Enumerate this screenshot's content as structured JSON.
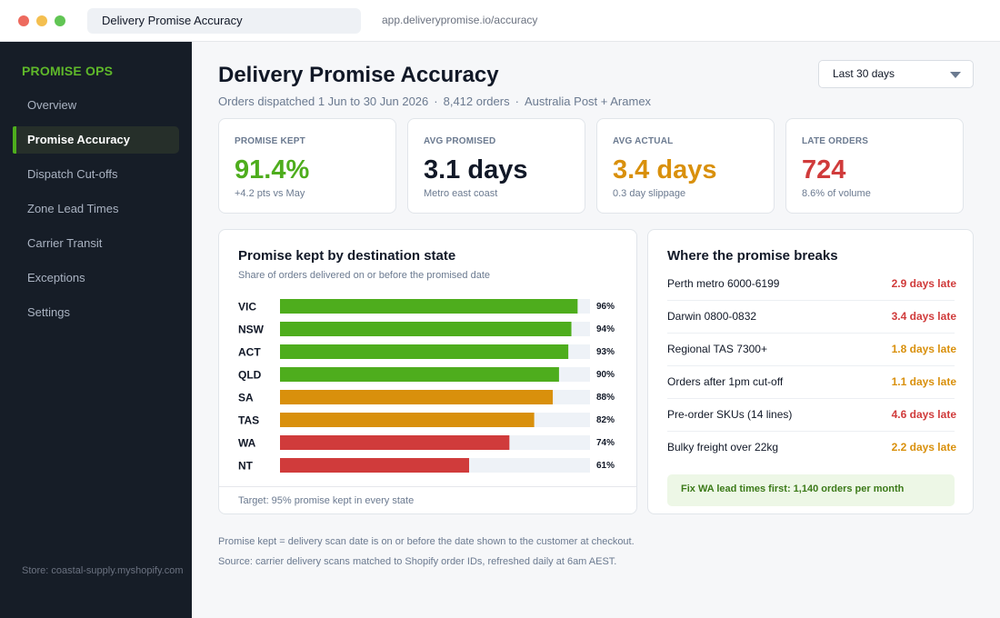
{
  "browser": {
    "tab_title": "Delivery Promise Accuracy",
    "url": "app.deliverypromise.io/accuracy"
  },
  "sidebar": {
    "brand": "PROMISE OPS",
    "items": [
      {
        "label": "Overview",
        "active": false
      },
      {
        "label": "Promise Accuracy",
        "active": true
      },
      {
        "label": "Dispatch Cut-offs",
        "active": false
      },
      {
        "label": "Zone Lead Times",
        "active": false
      },
      {
        "label": "Carrier Transit",
        "active": false
      },
      {
        "label": "Exceptions",
        "active": false
      },
      {
        "label": "Settings",
        "active": false
      }
    ],
    "store": "Store: coastal-supply.myshopify.com"
  },
  "header": {
    "title": "Delivery Promise Accuracy",
    "subtitle_range": "Orders dispatched 1 Jun to 30 Jun 2026",
    "subtitle_orders": "8,412 orders",
    "subtitle_carriers": "Australia Post + Aramex",
    "separator": "·",
    "range_select": "Last 30 days"
  },
  "kpis": [
    {
      "label": "PROMISE KEPT",
      "value": "91.4%",
      "note": "+4.2 pts vs May",
      "color": "#4ead1d"
    },
    {
      "label": "AVG PROMISED",
      "value": "3.1 days",
      "note": "Metro east coast",
      "color": "#111827"
    },
    {
      "label": "AVG ACTUAL",
      "value": "3.4 days",
      "note": "0.3 day slippage",
      "color": "#d9900c"
    },
    {
      "label": "LATE ORDERS",
      "value": "724",
      "note": "8.6% of volume",
      "color": "#d03b3b"
    }
  ],
  "chart_panel": {
    "title": "Promise kept by destination state",
    "subtitle": "Share of orders delivered on or before the promised date",
    "footer": "Target: 95% promise kept in every state"
  },
  "chart_data": {
    "type": "bar",
    "orientation": "horizontal",
    "categories": [
      "VIC",
      "NSW",
      "ACT",
      "QLD",
      "SA",
      "TAS",
      "WA",
      "NT"
    ],
    "values": [
      96,
      94,
      93,
      90,
      88,
      82,
      74,
      61
    ],
    "value_labels": [
      "96%",
      "94%",
      "93%",
      "90%",
      "88%",
      "82%",
      "74%",
      "61%"
    ],
    "bar_colors": [
      "#4ead1d",
      "#4ead1d",
      "#4ead1d",
      "#4ead1d",
      "#d9900c",
      "#d9900c",
      "#d03b3b",
      "#d03b3b"
    ],
    "track_color": "#eef2f7",
    "xlim": [
      0,
      100
    ],
    "grid": false
  },
  "breaks_panel": {
    "title": "Where the promise breaks",
    "rows": [
      {
        "label": "Perth metro 6000-6199",
        "value": "2.9 days late",
        "color": "#d03b3b"
      },
      {
        "label": "Darwin 0800-0832",
        "value": "3.4 days late",
        "color": "#d03b3b"
      },
      {
        "label": "Regional TAS 7300+",
        "value": "1.8 days late",
        "color": "#d9900c"
      },
      {
        "label": "Orders after 1pm cut-off",
        "value": "1.1 days late",
        "color": "#d9900c"
      },
      {
        "label": "Pre-order SKUs (14 lines)",
        "value": "4.6 days late",
        "color": "#d03b3b"
      },
      {
        "label": "Bulky freight over 22kg",
        "value": "2.2 days late",
        "color": "#d9900c"
      }
    ],
    "callout": "Fix WA lead times first: 1,140 orders per month"
  },
  "footnotes": {
    "definition": "Promise kept = delivery scan date is on or before the date shown to the customer at checkout.",
    "source": "Source: carrier delivery scans matched to Shopify order IDs, refreshed daily at 6am AEST."
  }
}
